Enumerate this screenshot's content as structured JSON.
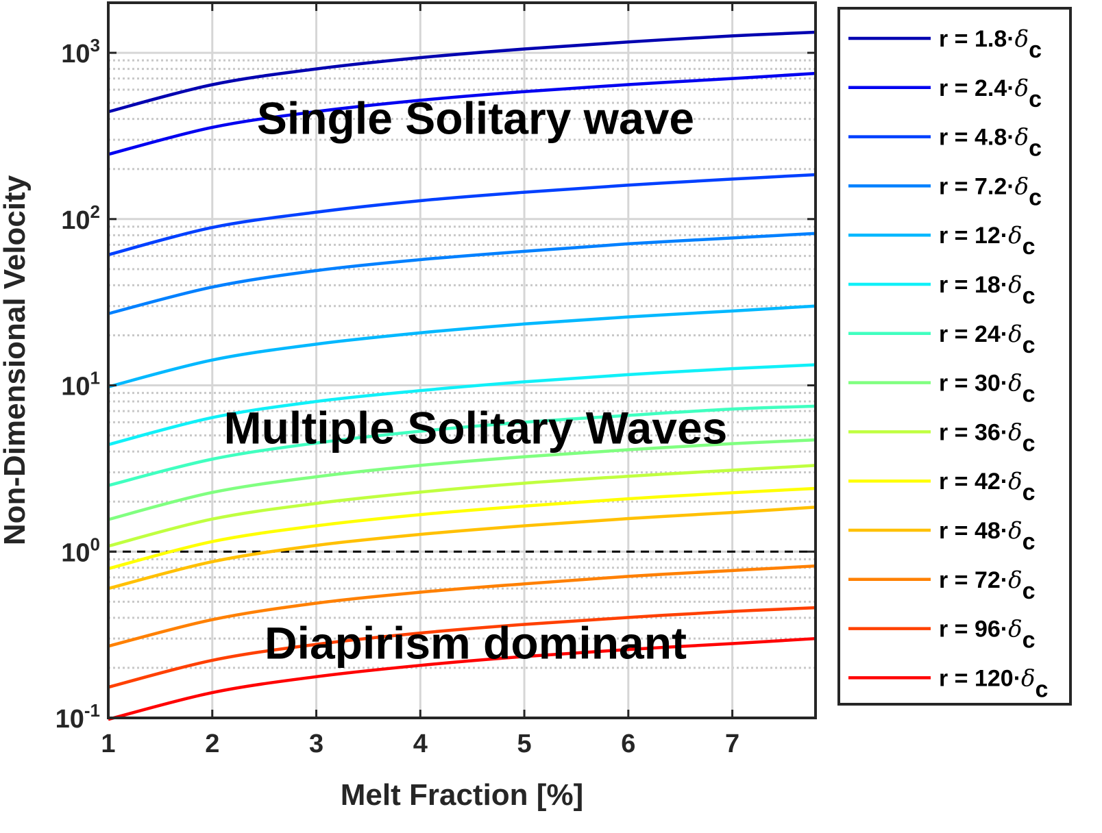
{
  "chart_data": {
    "type": "line",
    "xlabel": "Melt Fraction [%]",
    "ylabel": "Non-Dimensional Velocity",
    "xlim": [
      1,
      7.8
    ],
    "ylim": [
      0.1,
      2000
    ],
    "yscale": "log",
    "grid": true,
    "legend_position": "outside-right",
    "x_ticks": [
      "1",
      "2",
      "3",
      "4",
      "5",
      "6",
      "7"
    ],
    "y_ticks": [
      {
        "base": "10",
        "exp": "-1"
      },
      {
        "base": "10",
        "exp": "0"
      },
      {
        "base": "10",
        "exp": "1"
      },
      {
        "base": "10",
        "exp": "2"
      },
      {
        "base": "10",
        "exp": "3"
      }
    ],
    "reference_line": {
      "y": 1,
      "style": "dashed",
      "color": "#000000"
    },
    "annotations": [
      {
        "text": "Single Solitary wave",
        "x": 4.4,
        "y": 400
      },
      {
        "text": "Multiple Solitary Waves",
        "x": 4.4,
        "y": 5.5
      },
      {
        "text": "Diapirism dominant",
        "x": 4.4,
        "y": 0.28
      }
    ],
    "x": [
      1,
      2,
      3,
      4,
      5,
      6,
      7,
      7.8
    ],
    "series": [
      {
        "name": "r = 1.8·δc",
        "color": "#0000b0",
        "values": [
          442,
          643,
          800,
          935,
          1054,
          1162,
          1264,
          1330
        ]
      },
      {
        "name": "r = 2.4·δc",
        "color": "#0000f0",
        "values": [
          245,
          356,
          443,
          518,
          584,
          644,
          700,
          752
        ]
      },
      {
        "name": "r = 4.8·δc",
        "color": "#0040ff",
        "values": [
          61,
          89,
          110,
          129,
          145,
          160,
          174,
          185
        ]
      },
      {
        "name": "r = 7.2·δc",
        "color": "#0080ff",
        "values": [
          27,
          39,
          49,
          57,
          64,
          71,
          77,
          82
        ]
      },
      {
        "name": "r = 12·δc",
        "color": "#00b8ff",
        "values": [
          9.8,
          14.2,
          17.7,
          20.7,
          23.4,
          25.8,
          28.0,
          30
        ]
      },
      {
        "name": "r = 18·δc",
        "color": "#10f0f8",
        "values": [
          4.4,
          6.4,
          8.0,
          9.3,
          10.5,
          11.6,
          12.6,
          13.3
        ]
      },
      {
        "name": "r = 24·δc",
        "color": "#40ffc0",
        "values": [
          2.5,
          3.6,
          4.5,
          5.3,
          6.0,
          6.6,
          7.2,
          7.5
        ]
      },
      {
        "name": "r = 30·δc",
        "color": "#80ff80",
        "values": [
          1.56,
          2.27,
          2.82,
          3.3,
          3.72,
          4.1,
          4.46,
          4.7
        ]
      },
      {
        "name": "r = 36·δc",
        "color": "#c0ff40",
        "values": [
          1.08,
          1.57,
          1.95,
          2.28,
          2.58,
          2.84,
          3.09,
          3.3
        ]
      },
      {
        "name": "r = 42·δc",
        "color": "#ffff00",
        "values": [
          0.79,
          1.15,
          1.43,
          1.67,
          1.88,
          2.08,
          2.26,
          2.4
        ]
      },
      {
        "name": "r = 48·δc",
        "color": "#ffc000",
        "values": [
          0.6,
          0.87,
          1.09,
          1.27,
          1.43,
          1.58,
          1.72,
          1.85
        ]
      },
      {
        "name": "r = 72·δc",
        "color": "#ff8000",
        "values": [
          0.27,
          0.39,
          0.49,
          0.57,
          0.64,
          0.71,
          0.77,
          0.82
        ]
      },
      {
        "name": "r = 96·δc",
        "color": "#ff4000",
        "values": [
          0.153,
          0.222,
          0.277,
          0.324,
          0.365,
          0.402,
          0.437,
          0.46
        ]
      },
      {
        "name": "r = 120·δc",
        "color": "#ff0000",
        "values": [
          0.098,
          0.142,
          0.177,
          0.207,
          0.234,
          0.258,
          0.28,
          0.3
        ]
      }
    ]
  }
}
